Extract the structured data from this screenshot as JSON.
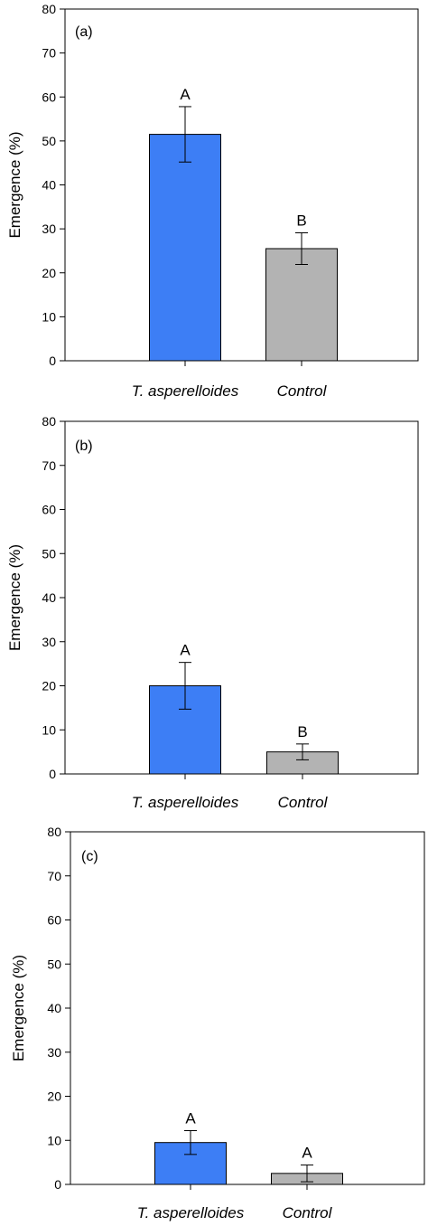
{
  "chart_data": [
    {
      "type": "bar",
      "panel_label": "(a)",
      "ylabel": "Emergence (%)",
      "categories": [
        "T. asperelloides",
        "Control"
      ],
      "values": [
        51.5,
        25.5
      ],
      "errors": [
        6.3,
        3.6
      ],
      "significance": [
        "A",
        "B"
      ],
      "colors": [
        "#3d7ef5",
        "#b3b3b3"
      ],
      "ylim": [
        0,
        80
      ],
      "yticks": [
        0,
        10,
        20,
        30,
        40,
        50,
        60,
        70,
        80
      ]
    },
    {
      "type": "bar",
      "panel_label": "(b)",
      "ylabel": "Emergence (%)",
      "categories": [
        "T. asperelloides",
        "Control"
      ],
      "values": [
        20.0,
        5.0
      ],
      "errors": [
        5.3,
        1.8
      ],
      "significance": [
        "A",
        "B"
      ],
      "colors": [
        "#3d7ef5",
        "#b3b3b3"
      ],
      "ylim": [
        0,
        80
      ],
      "yticks": [
        0,
        10,
        20,
        30,
        40,
        50,
        60,
        70,
        80
      ]
    },
    {
      "type": "bar",
      "panel_label": "(c)",
      "ylabel": "Emergence (%)",
      "categories": [
        "T. asperelloides",
        "Control"
      ],
      "values": [
        9.5,
        2.5
      ],
      "errors": [
        2.7,
        1.9
      ],
      "significance": [
        "A",
        "A"
      ],
      "colors": [
        "#3d7ef5",
        "#b3b3b3"
      ],
      "ylim": [
        0,
        80
      ],
      "yticks": [
        0,
        10,
        20,
        30,
        40,
        50,
        60,
        70,
        80
      ]
    }
  ]
}
